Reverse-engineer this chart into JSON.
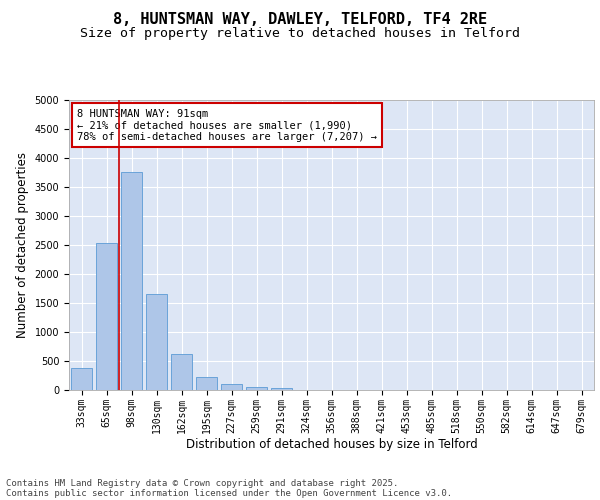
{
  "title_line1": "8, HUNTSMAN WAY, DAWLEY, TELFORD, TF4 2RE",
  "title_line2": "Size of property relative to detached houses in Telford",
  "xlabel": "Distribution of detached houses by size in Telford",
  "ylabel": "Number of detached properties",
  "categories": [
    "33sqm",
    "65sqm",
    "98sqm",
    "130sqm",
    "162sqm",
    "195sqm",
    "227sqm",
    "259sqm",
    "291sqm",
    "324sqm",
    "356sqm",
    "388sqm",
    "421sqm",
    "453sqm",
    "485sqm",
    "518sqm",
    "550sqm",
    "582sqm",
    "614sqm",
    "647sqm",
    "679sqm"
  ],
  "values": [
    380,
    2530,
    3760,
    1650,
    620,
    230,
    100,
    60,
    40,
    0,
    0,
    0,
    0,
    0,
    0,
    0,
    0,
    0,
    0,
    0,
    0
  ],
  "bar_color": "#aec6e8",
  "bar_edge_color": "#5b9bd5",
  "vline_x": 1.5,
  "vline_color": "#cc0000",
  "annotation_text": "8 HUNTSMAN WAY: 91sqm\n← 21% of detached houses are smaller (1,990)\n78% of semi-detached houses are larger (7,207) →",
  "annotation_box_color": "#cc0000",
  "annotation_text_color": "#000000",
  "ylim": [
    0,
    5000
  ],
  "yticks": [
    0,
    500,
    1000,
    1500,
    2000,
    2500,
    3000,
    3500,
    4000,
    4500,
    5000
  ],
  "background_color": "#dde6f5",
  "grid_color": "#ffffff",
  "footer_line1": "Contains HM Land Registry data © Crown copyright and database right 2025.",
  "footer_line2": "Contains public sector information licensed under the Open Government Licence v3.0.",
  "title_fontsize": 11,
  "subtitle_fontsize": 9.5,
  "label_fontsize": 8.5,
  "tick_fontsize": 7,
  "annotation_fontsize": 7.5,
  "footer_fontsize": 6.5
}
